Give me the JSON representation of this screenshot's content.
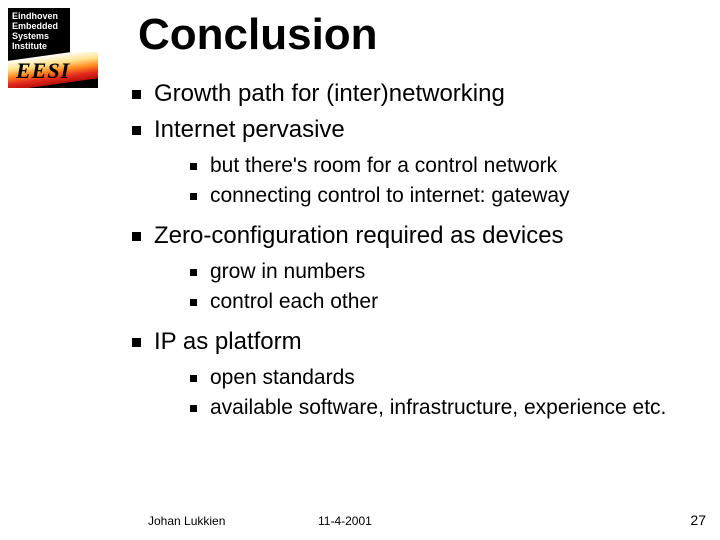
{
  "logo": {
    "line1": "Eindhoven",
    "line2": "Embedded",
    "line3": "Systems",
    "line4": "Institute",
    "acronym": "EESI"
  },
  "title": "Conclusion",
  "bullets": [
    {
      "text": "Growth path for (inter)networking",
      "children": []
    },
    {
      "text": "Internet pervasive",
      "children": [
        {
          "text": "but there's room for a control network"
        },
        {
          "text": "connecting control to internet: gateway"
        }
      ]
    },
    {
      "text": "Zero-configuration required as devices",
      "children": [
        {
          "text": "grow in numbers"
        },
        {
          "text": "control each other"
        }
      ]
    },
    {
      "text": "IP as platform",
      "children": [
        {
          "text": "open standards"
        },
        {
          "text": "available software, infrastructure, experience etc."
        }
      ]
    }
  ],
  "footer": {
    "author": "Johan Lukkien",
    "date": "11-4-2001",
    "page": "27"
  },
  "style": {
    "background_color": "#ffffff",
    "text_color": "#000000",
    "title_fontsize_pt": 33,
    "level1_fontsize_pt": 18,
    "level2_fontsize_pt": 16,
    "footer_fontsize_pt": 9,
    "bullet_shape": "square",
    "font_family": "Arial"
  }
}
